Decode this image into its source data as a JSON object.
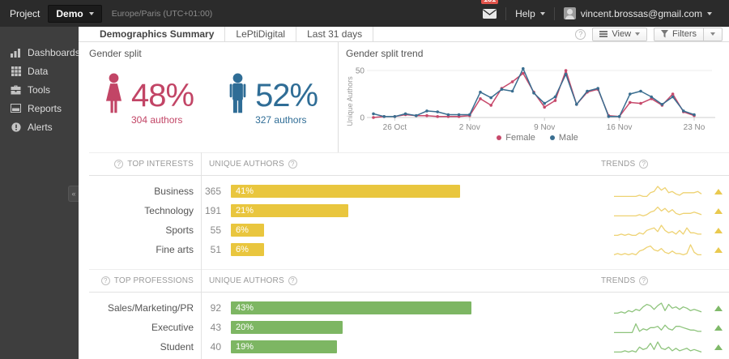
{
  "ui": {
    "help_glyph": "?",
    "collapse_glyph": "«"
  },
  "topbar": {
    "project_label": "Project",
    "project_name": "Demo",
    "timezone": "Europe/Paris (UTC+01:00)",
    "mail_badge": "131",
    "help_label": "Help",
    "user_email": "vincent.brossas@gmail.com"
  },
  "sidebar": {
    "items": [
      {
        "label": "Dashboards",
        "icon": "bar-chart-icon"
      },
      {
        "label": "Data",
        "icon": "grid-icon"
      },
      {
        "label": "Tools",
        "icon": "briefcase-icon"
      },
      {
        "label": "Reports",
        "icon": "report-icon"
      },
      {
        "label": "Alerts",
        "icon": "alert-icon"
      }
    ]
  },
  "header": {
    "title": "Demographics Summary",
    "source": "LePtiDigital",
    "period": "Last 31 days",
    "view_label": "View",
    "filters_label": "Filters"
  },
  "gender_split": {
    "title": "Gender split",
    "female": {
      "percent": "48%",
      "authors": "304 authors",
      "color": "#c24566"
    },
    "male": {
      "percent": "52%",
      "authors": "327 authors",
      "color": "#2f6d96"
    }
  },
  "chart_data": [
    {
      "type": "line",
      "title": "Gender split trend",
      "ylabel": "Unique Authors",
      "ylim": [
        0,
        55
      ],
      "yticks": [
        0,
        50
      ],
      "x_tick_labels": [
        "26 Oct",
        "2 Nov",
        "9 Nov",
        "16 Nov",
        "23 No"
      ],
      "x_tick_indices": [
        2,
        9,
        16,
        23,
        30
      ],
      "legend_position": "bottom",
      "grid": false,
      "series": [
        {
          "name": "Female",
          "color": "#c7496b",
          "values": [
            0,
            1,
            1,
            3,
            2,
            2,
            1,
            1,
            1,
            2,
            20,
            13,
            31,
            38,
            47,
            27,
            11,
            18,
            50,
            14,
            27,
            30,
            2,
            1,
            16,
            15,
            20,
            13,
            25,
            6,
            2
          ]
        },
        {
          "name": "Male",
          "color": "#3a6e90",
          "values": [
            4,
            1,
            1,
            4,
            2,
            7,
            6,
            3,
            3,
            3,
            27,
            21,
            30,
            28,
            52,
            26,
            15,
            22,
            46,
            14,
            28,
            31,
            1,
            1,
            25,
            28,
            22,
            14,
            22,
            7,
            3
          ]
        }
      ]
    },
    {
      "type": "bar",
      "title": "TOP INTERESTS",
      "columns": [
        "TOP INTERESTS",
        "UNIQUE AUTHORS",
        "TRENDS"
      ],
      "bar_color": "#e9c63e",
      "spark_color": "#eed272",
      "tri_color": "#e9c94f",
      "rows": [
        {
          "label": "Business",
          "count": 365,
          "percent": 41,
          "percent_label": "41%",
          "trend_direction": "up",
          "trend": [
            1,
            1,
            1,
            1,
            1,
            1,
            1,
            2,
            1,
            1,
            4,
            5,
            9,
            6,
            8,
            4,
            5,
            3,
            2,
            4,
            4,
            4,
            4,
            5,
            3
          ]
        },
        {
          "label": "Technology",
          "count": 191,
          "percent": 21,
          "percent_label": "21%",
          "trend_direction": "up",
          "trend": [
            1,
            1,
            1,
            1,
            1,
            1,
            1,
            2,
            1,
            2,
            4,
            5,
            8,
            5,
            7,
            4,
            6,
            3,
            2,
            3,
            3,
            3,
            4,
            3,
            2
          ]
        },
        {
          "label": "Sports",
          "count": 55,
          "percent": 6,
          "percent_label": "6%",
          "trend_direction": "up",
          "trend": [
            1,
            1,
            2,
            1,
            2,
            1,
            1,
            3,
            2,
            5,
            6,
            7,
            4,
            9,
            5,
            3,
            4,
            2,
            5,
            2,
            7,
            3,
            3,
            2,
            2
          ]
        },
        {
          "label": "Fine arts",
          "count": 51,
          "percent": 6,
          "percent_label": "6%",
          "trend_direction": "up",
          "trend": [
            1,
            2,
            1,
            2,
            1,
            2,
            1,
            4,
            5,
            7,
            8,
            5,
            4,
            6,
            3,
            2,
            4,
            2,
            2,
            1,
            2,
            9,
            3,
            1,
            1
          ]
        }
      ]
    },
    {
      "type": "bar",
      "title": "TOP PROFESSIONS",
      "columns": [
        "TOP PROFESSIONS",
        "UNIQUE AUTHORS",
        "TRENDS"
      ],
      "bar_color": "#7db663",
      "spark_color": "#8ec47c",
      "tri_color": "#7fb969",
      "rows": [
        {
          "label": "Sales/Marketing/PR",
          "count": 92,
          "percent": 43,
          "percent_label": "43%",
          "trend_direction": "up",
          "trend": [
            1,
            1,
            2,
            1,
            3,
            2,
            4,
            3,
            6,
            8,
            7,
            4,
            7,
            9,
            3,
            8,
            5,
            6,
            4,
            6,
            5,
            3,
            4,
            3,
            2
          ]
        },
        {
          "label": "Executive",
          "count": 43,
          "percent": 20,
          "percent_label": "20%",
          "trend_direction": "up",
          "trend": [
            1,
            1,
            1,
            1,
            1,
            1,
            8,
            2,
            4,
            3,
            5,
            5,
            6,
            3,
            7,
            4,
            3,
            6,
            6,
            5,
            4,
            3,
            3,
            2,
            2
          ]
        },
        {
          "label": "Student",
          "count": 40,
          "percent": 19,
          "percent_label": "19%",
          "trend_direction": "up",
          "trend": [
            1,
            1,
            1,
            2,
            1,
            2,
            1,
            5,
            3,
            4,
            8,
            3,
            9,
            4,
            3,
            5,
            2,
            4,
            2,
            3,
            4,
            2,
            3,
            2,
            1
          ]
        }
      ]
    }
  ]
}
